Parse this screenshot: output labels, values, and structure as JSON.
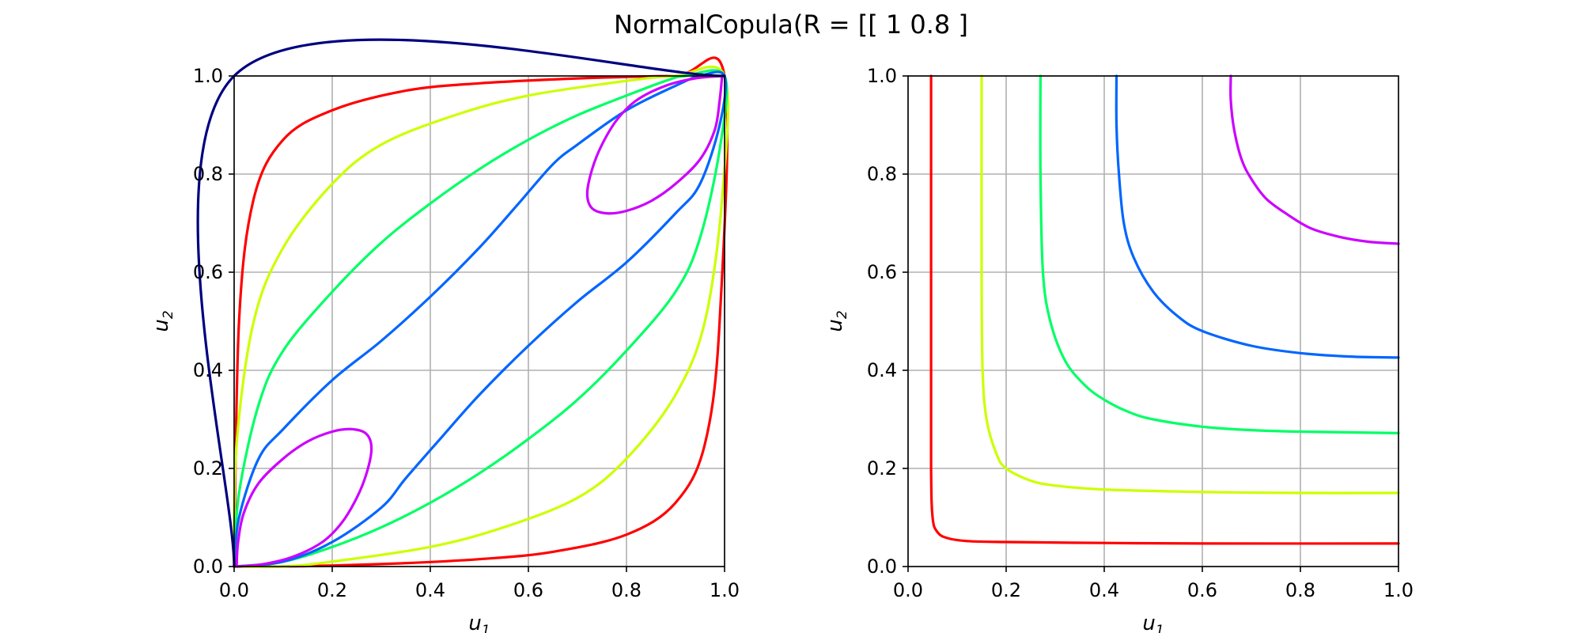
{
  "figure_title": "NormalCopula(R = [[ 1   0.8 ]",
  "colors": [
    "#ff0000",
    "#ccff00",
    "#00ff66",
    "#0066ff",
    "#cc00ff"
  ],
  "chart_data": [
    {
      "type": "line",
      "name": "left-panel",
      "xlabel": "u",
      "xlabel_sub": "1",
      "ylabel": "u",
      "ylabel_sub": "2",
      "xlim": [
        0,
        1
      ],
      "ylim": [
        0,
        1
      ],
      "xticks": [
        "0.0",
        "0.2",
        "0.4",
        "0.6",
        "0.8",
        "1.0"
      ],
      "yticks": [
        "0.0",
        "0.2",
        "0.4",
        "0.6",
        "0.8",
        "1.0"
      ],
      "grid": true,
      "series": [
        {
          "color": "#ff0000",
          "points": [
            [
              0,
              0
            ],
            [
              0.01,
              0.5
            ],
            [
              0.04,
              0.75
            ],
            [
              0.1,
              0.87
            ],
            [
              0.2,
              0.93
            ],
            [
              0.35,
              0.97
            ],
            [
              0.5,
              0.985
            ],
            [
              0.7,
              0.995
            ],
            [
              0.9,
              1.0
            ],
            [
              1,
              1.0
            ],
            [
              0.99,
              0.5
            ],
            [
              0.96,
              0.25
            ],
            [
              0.9,
              0.13
            ],
            [
              0.8,
              0.065
            ],
            [
              0.65,
              0.03
            ],
            [
              0.5,
              0.015
            ],
            [
              0.3,
              0.005
            ],
            [
              0.1,
              0.0
            ],
            [
              0,
              0
            ]
          ]
        },
        {
          "color": "#ccff00",
          "points": [
            [
              0,
              0
            ],
            [
              0.005,
              0.25
            ],
            [
              0.04,
              0.5
            ],
            [
              0.1,
              0.65
            ],
            [
              0.2,
              0.78
            ],
            [
              0.3,
              0.86
            ],
            [
              0.45,
              0.92
            ],
            [
              0.6,
              0.96
            ],
            [
              0.8,
              0.99
            ],
            [
              0.9,
              1.0
            ],
            [
              1,
              1.0
            ],
            [
              0.995,
              0.75
            ],
            [
              0.96,
              0.5
            ],
            [
              0.9,
              0.35
            ],
            [
              0.8,
              0.22
            ],
            [
              0.7,
              0.14
            ],
            [
              0.55,
              0.08
            ],
            [
              0.4,
              0.04
            ],
            [
              0.2,
              0.01
            ],
            [
              0.1,
              0.0
            ],
            [
              0,
              0
            ]
          ]
        },
        {
          "color": "#00ff66",
          "points": [
            [
              0,
              0
            ],
            [
              0.01,
              0.15
            ],
            [
              0.05,
              0.33
            ],
            [
              0.1,
              0.44
            ],
            [
              0.2,
              0.56
            ],
            [
              0.3,
              0.66
            ],
            [
              0.4,
              0.74
            ],
            [
              0.5,
              0.81
            ],
            [
              0.6,
              0.87
            ],
            [
              0.7,
              0.92
            ],
            [
              0.8,
              0.96
            ],
            [
              0.88,
              0.99
            ],
            [
              0.92,
              1.0
            ],
            [
              1,
              1.0
            ],
            [
              0.99,
              0.85
            ],
            [
              0.95,
              0.67
            ],
            [
              0.9,
              0.56
            ],
            [
              0.8,
              0.44
            ],
            [
              0.7,
              0.34
            ],
            [
              0.6,
              0.26
            ],
            [
              0.5,
              0.19
            ],
            [
              0.4,
              0.13
            ],
            [
              0.3,
              0.08
            ],
            [
              0.2,
              0.04
            ],
            [
              0.1,
              0.01
            ],
            [
              0,
              0
            ]
          ]
        },
        {
          "color": "#0066ff",
          "points": [
            [
              0,
              0
            ],
            [
              0.01,
              0.1
            ],
            [
              0.05,
              0.22
            ],
            [
              0.1,
              0.28
            ],
            [
              0.2,
              0.38
            ],
            [
              0.3,
              0.46
            ],
            [
              0.4,
              0.55
            ],
            [
              0.5,
              0.65
            ],
            [
              0.58,
              0.74
            ],
            [
              0.65,
              0.82
            ],
            [
              0.7,
              0.86
            ],
            [
              0.8,
              0.93
            ],
            [
              0.9,
              0.98
            ],
            [
              0.95,
              1.0
            ],
            [
              1,
              1.0
            ],
            [
              0.99,
              0.9
            ],
            [
              0.95,
              0.78
            ],
            [
              0.9,
              0.72
            ],
            [
              0.8,
              0.62
            ],
            [
              0.7,
              0.54
            ],
            [
              0.6,
              0.45
            ],
            [
              0.5,
              0.35
            ],
            [
              0.42,
              0.26
            ],
            [
              0.35,
              0.18
            ],
            [
              0.3,
              0.12
            ],
            [
              0.2,
              0.05
            ],
            [
              0.1,
              0.01
            ],
            [
              0,
              0
            ]
          ]
        },
        {
          "color": "#cc00ff",
          "points": [
            [
              0.005,
              0.0
            ],
            [
              0.008,
              0.05
            ],
            [
              0.02,
              0.11
            ],
            [
              0.05,
              0.17
            ],
            [
              0.1,
              0.22
            ],
            [
              0.15,
              0.255
            ],
            [
              0.2,
              0.275
            ],
            [
              0.24,
              0.28
            ],
            [
              0.27,
              0.27
            ],
            [
              0.28,
              0.24
            ],
            [
              0.27,
              0.19
            ],
            [
              0.25,
              0.14
            ],
            [
              0.22,
              0.09
            ],
            [
              0.18,
              0.05
            ],
            [
              0.12,
              0.02
            ],
            [
              0.06,
              0.005
            ],
            [
              0.005,
              0.0
            ]
          ]
        },
        {
          "color": "#cc00ff",
          "points": [
            [
              0.995,
              1.0
            ],
            [
              0.99,
              0.95
            ],
            [
              0.98,
              0.89
            ],
            [
              0.95,
              0.83
            ],
            [
              0.9,
              0.78
            ],
            [
              0.85,
              0.745
            ],
            [
              0.8,
              0.725
            ],
            [
              0.76,
              0.72
            ],
            [
              0.73,
              0.73
            ],
            [
              0.72,
              0.76
            ],
            [
              0.73,
              0.81
            ],
            [
              0.75,
              0.86
            ],
            [
              0.78,
              0.91
            ],
            [
              0.82,
              0.95
            ],
            [
              0.88,
              0.98
            ],
            [
              0.94,
              0.995
            ],
            [
              0.995,
              1.0
            ]
          ]
        },
        {
          "color": "#000080",
          "points": [
            [
              0,
              0
            ],
            [
              0,
              1
            ],
            [
              1,
              1
            ]
          ]
        }
      ]
    },
    {
      "type": "line",
      "name": "right-panel",
      "xlabel": "u",
      "xlabel_sub": "1",
      "ylabel": "u",
      "ylabel_sub": "2",
      "xlim": [
        0,
        1
      ],
      "ylim": [
        0,
        1
      ],
      "xticks": [
        "0.0",
        "0.2",
        "0.4",
        "0.6",
        "0.8",
        "1.0"
      ],
      "yticks": [
        "0.0",
        "0.2",
        "0.4",
        "0.6",
        "0.8",
        "1.0"
      ],
      "grid": true,
      "series": [
        {
          "color": "#ff0000",
          "points": [
            [
              0.047,
              1.0
            ],
            [
              0.047,
              0.5
            ],
            [
              0.047,
              0.2
            ],
            [
              0.05,
              0.1
            ],
            [
              0.06,
              0.07
            ],
            [
              0.08,
              0.058
            ],
            [
              0.12,
              0.052
            ],
            [
              0.2,
              0.05
            ],
            [
              0.4,
              0.048
            ],
            [
              0.6,
              0.047
            ],
            [
              1.0,
              0.047
            ]
          ]
        },
        {
          "color": "#ccff00",
          "points": [
            [
              0.15,
              1.0
            ],
            [
              0.15,
              0.6
            ],
            [
              0.152,
              0.4
            ],
            [
              0.16,
              0.3
            ],
            [
              0.18,
              0.23
            ],
            [
              0.2,
              0.2
            ],
            [
              0.25,
              0.175
            ],
            [
              0.3,
              0.165
            ],
            [
              0.4,
              0.157
            ],
            [
              0.6,
              0.152
            ],
            [
              0.8,
              0.15
            ],
            [
              1.0,
              0.15
            ]
          ]
        },
        {
          "color": "#00ff66",
          "points": [
            [
              0.27,
              1.0
            ],
            [
              0.27,
              0.8
            ],
            [
              0.275,
              0.6
            ],
            [
              0.29,
              0.5
            ],
            [
              0.32,
              0.42
            ],
            [
              0.36,
              0.37
            ],
            [
              0.4,
              0.34
            ],
            [
              0.45,
              0.315
            ],
            [
              0.5,
              0.3
            ],
            [
              0.6,
              0.285
            ],
            [
              0.7,
              0.278
            ],
            [
              0.8,
              0.275
            ],
            [
              1.0,
              0.272
            ]
          ]
        },
        {
          "color": "#0066ff",
          "points": [
            [
              0.425,
              1.0
            ],
            [
              0.425,
              0.9
            ],
            [
              0.43,
              0.8
            ],
            [
              0.44,
              0.7
            ],
            [
              0.46,
              0.63
            ],
            [
              0.5,
              0.56
            ],
            [
              0.55,
              0.51
            ],
            [
              0.6,
              0.48
            ],
            [
              0.7,
              0.45
            ],
            [
              0.8,
              0.435
            ],
            [
              0.9,
              0.428
            ],
            [
              1.0,
              0.426
            ]
          ]
        },
        {
          "color": "#cc00ff",
          "points": [
            [
              0.658,
              1.0
            ],
            [
              0.658,
              0.95
            ],
            [
              0.665,
              0.89
            ],
            [
              0.68,
              0.83
            ],
            [
              0.7,
              0.79
            ],
            [
              0.73,
              0.75
            ],
            [
              0.77,
              0.72
            ],
            [
              0.82,
              0.69
            ],
            [
              0.88,
              0.672
            ],
            [
              0.94,
              0.662
            ],
            [
              1.0,
              0.658
            ]
          ]
        }
      ]
    }
  ]
}
